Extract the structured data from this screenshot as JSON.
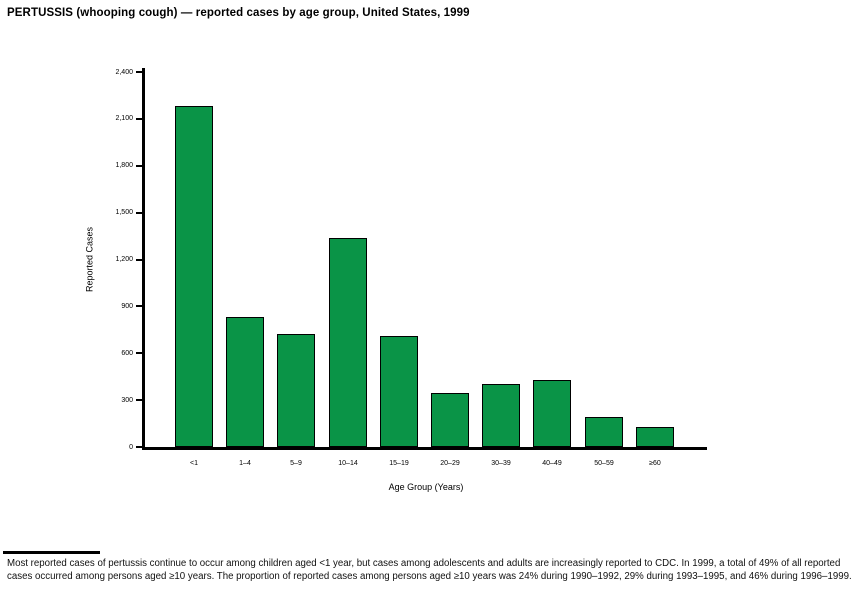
{
  "figure": {
    "title": "PERTUSSIS (whooping cough) — reported cases by age group, United States, 1999"
  },
  "chart_data": {
    "type": "bar",
    "title": "PERTUSSIS (whooping cough) — reported cases by age group, United States, 1999",
    "categories": [
      "<1",
      "1–4",
      "5–9",
      "10–14",
      "15–19",
      "20–29",
      "30–39",
      "40–49",
      "50–59",
      "≥60"
    ],
    "values": [
      2180,
      830,
      720,
      1340,
      710,
      345,
      400,
      430,
      190,
      125
    ],
    "xlabel": "Age Group (Years)",
    "ylabel": "Reported Cases",
    "ylim": [
      0,
      2400
    ],
    "yticks": [
      0,
      300,
      600,
      900,
      1200,
      1500,
      1800,
      2100,
      2400
    ],
    "ytick_labels": [
      "0",
      "300",
      "600",
      "900",
      "1,200",
      "1,500",
      "1,800",
      "2,100",
      "2,400"
    ],
    "grid": false,
    "legend": false,
    "bar_color": "#0a9447",
    "bar_border_color": "#000000",
    "axis_color": "#000000"
  },
  "footnote": {
    "text": "Most reported cases of pertussis continue to occur among children aged <1 year, but cases among adolescents and adults are increasingly reported to CDC. In 1999, a total of 49% of all reported cases occurred among persons aged ≥10 years. The proportion of reported cases among persons aged ≥10 years was 24% during 1990–1992, 29% during 1993–1995, and 46% during 1996–1999."
  }
}
